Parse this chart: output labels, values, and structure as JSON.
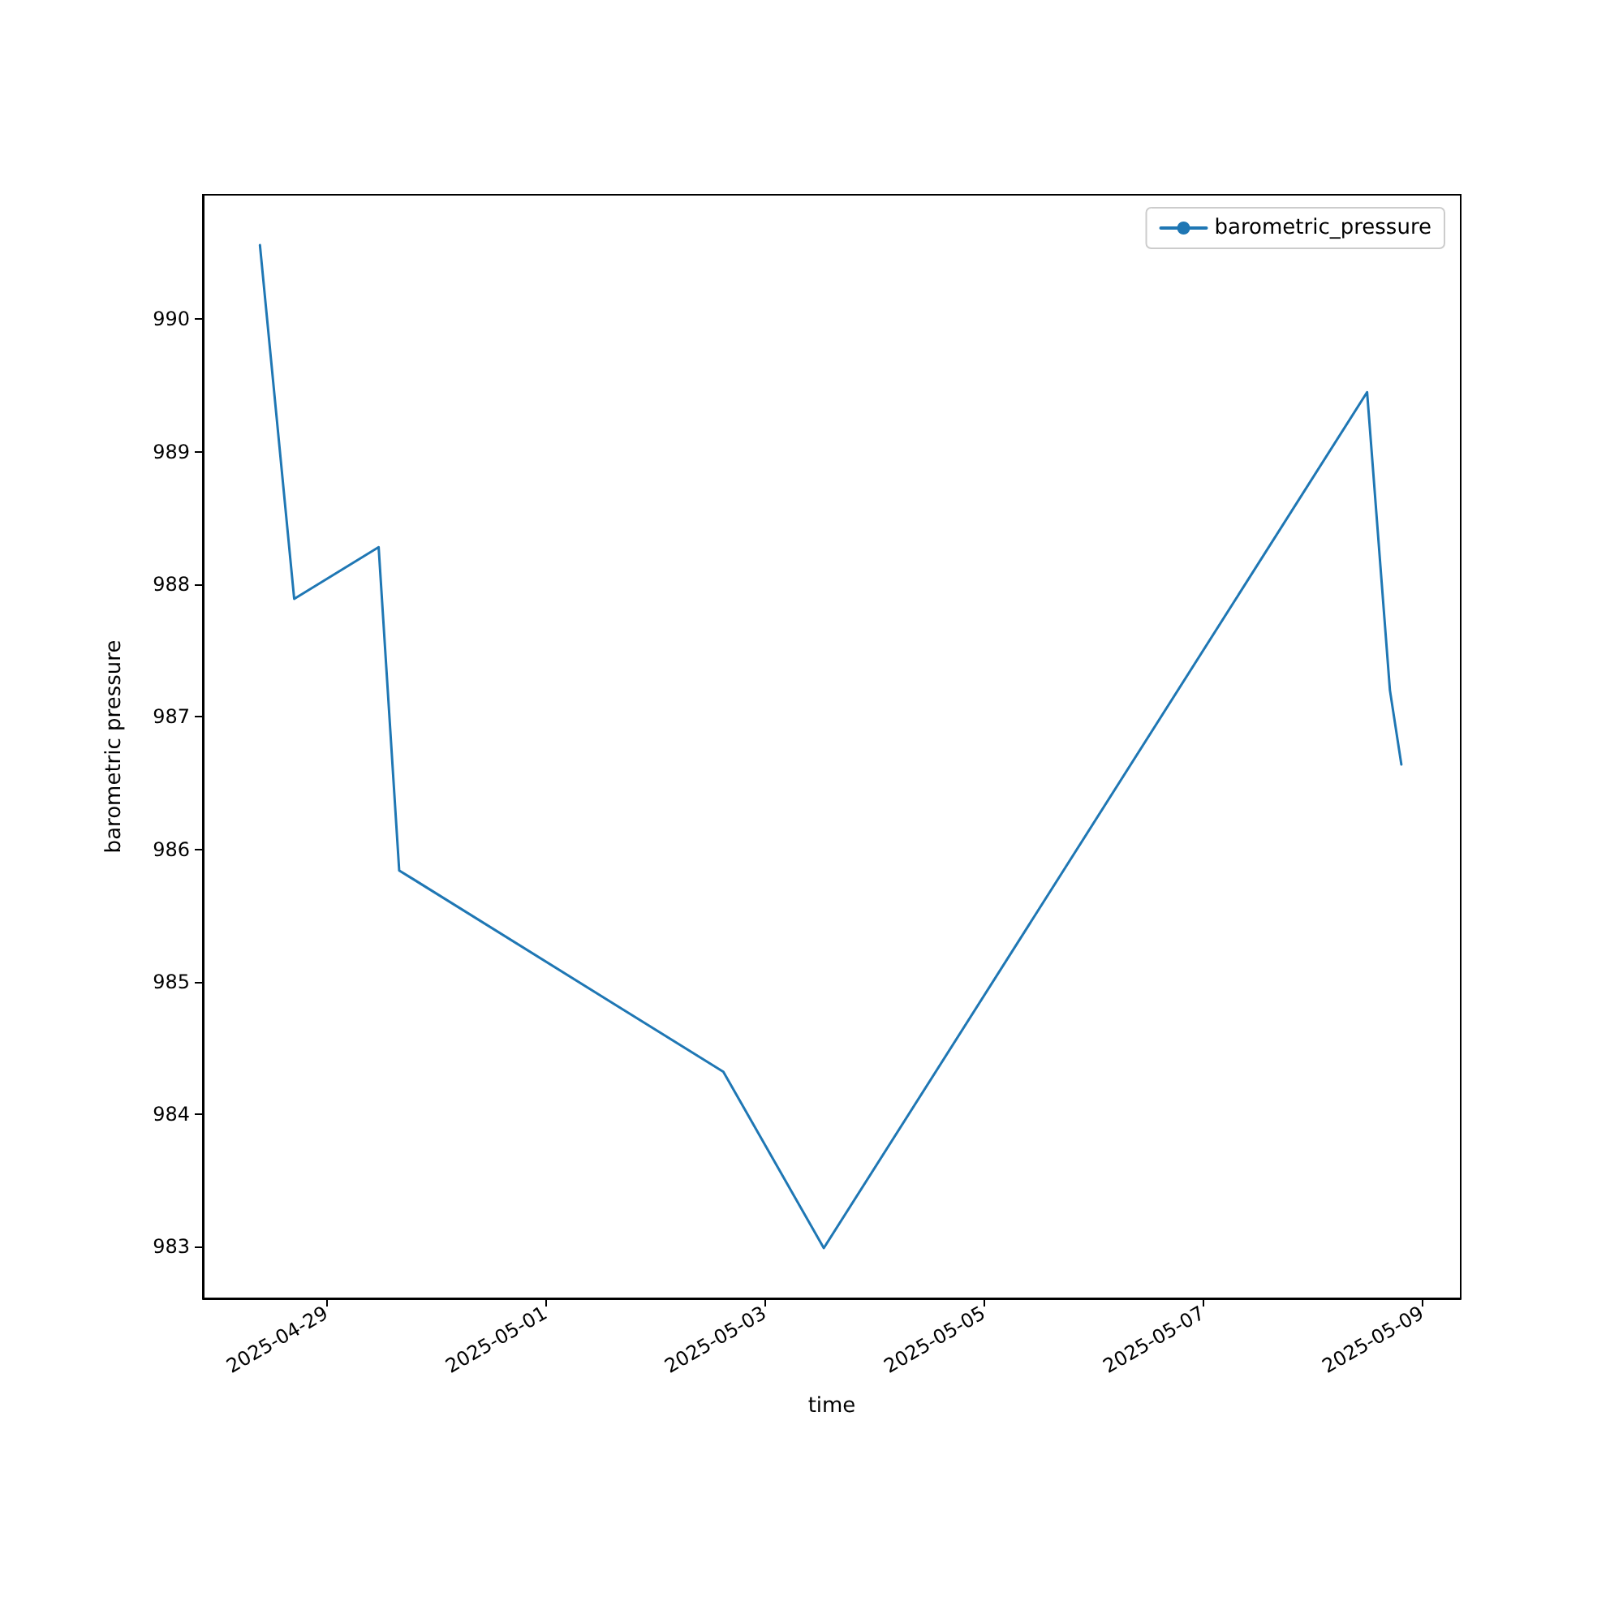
{
  "chart_data": {
    "type": "line",
    "xlabel": "time",
    "ylabel": "barometric pressure",
    "x": [
      "2025-04-28T09:30",
      "2025-04-28T17:00",
      "2025-04-29T11:30",
      "2025-04-29T16:00",
      "2025-05-02T15:00",
      "2025-05-03T13:00",
      "2025-05-08T12:00",
      "2025-05-08T17:00",
      "2025-05-08T19:30"
    ],
    "series": [
      {
        "name": "barometric_pressure",
        "color": "#1f77b4",
        "values": [
          990.56,
          987.89,
          988.28,
          985.84,
          984.32,
          982.99,
          989.45,
          987.2,
          986.64
        ]
      }
    ],
    "xlim": [
      "2025-04-27T21:00",
      "2025-05-09T08:30"
    ],
    "xticks": [
      "2025-04-29",
      "2025-05-01",
      "2025-05-03",
      "2025-05-05",
      "2025-05-07",
      "2025-05-09"
    ],
    "ylim": [
      982.61,
      990.94
    ],
    "yticks": [
      983,
      984,
      985,
      986,
      987,
      988,
      989,
      990
    ],
    "grid": false,
    "legend": "top right",
    "marker": "none",
    "line_style": "solid"
  }
}
